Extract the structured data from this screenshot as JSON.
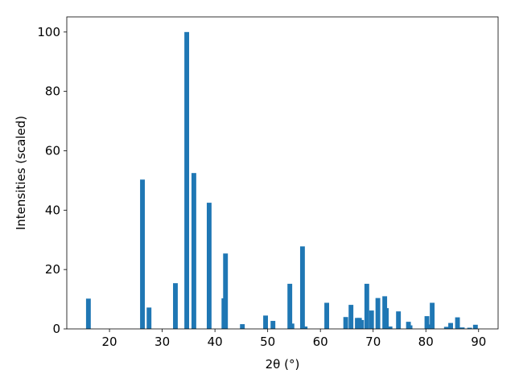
{
  "chart_data": {
    "type": "bar",
    "x_label": "2θ (°)",
    "y_label": "Intensities (scaled)",
    "x": [
      16.0,
      26.25,
      27.5,
      32.5,
      34.65,
      36.0,
      38.9,
      41.7,
      42.0,
      45.2,
      49.6,
      51.0,
      54.2,
      54.6,
      56.6,
      57.1,
      61.2,
      64.8,
      65.8,
      67.0,
      67.4,
      67.8,
      68.8,
      69.7,
      70.9,
      72.2,
      72.5,
      73.2,
      74.8,
      76.7,
      77.0,
      80.2,
      80.8,
      81.2,
      83.9,
      84.7,
      86.0,
      86.9,
      88.3,
      89.4
    ],
    "values": [
      10.2,
      50.3,
      7.2,
      15.4,
      100,
      52.5,
      42.5,
      10.3,
      25.4,
      1.6,
      4.5,
      2.7,
      15.2,
      1.8,
      27.8,
      0.8,
      8.8,
      4.0,
      8.1,
      3.7,
      3.7,
      3.0,
      15.2,
      6.2,
      10.4,
      11.0,
      7.0,
      0.8,
      5.9,
      2.4,
      1.2,
      4.3,
      1.5,
      8.8,
      0.7,
      2.0,
      3.9,
      0.5,
      0.4,
      1.4
    ],
    "color": "#1f77b4",
    "xlim": [
      11.9,
      93.7
    ],
    "ylim": [
      0,
      105.1
    ],
    "xticks": [
      20,
      30,
      40,
      50,
      60,
      70,
      80,
      90
    ],
    "yticks": [
      0,
      20,
      40,
      60,
      80,
      100
    ]
  }
}
